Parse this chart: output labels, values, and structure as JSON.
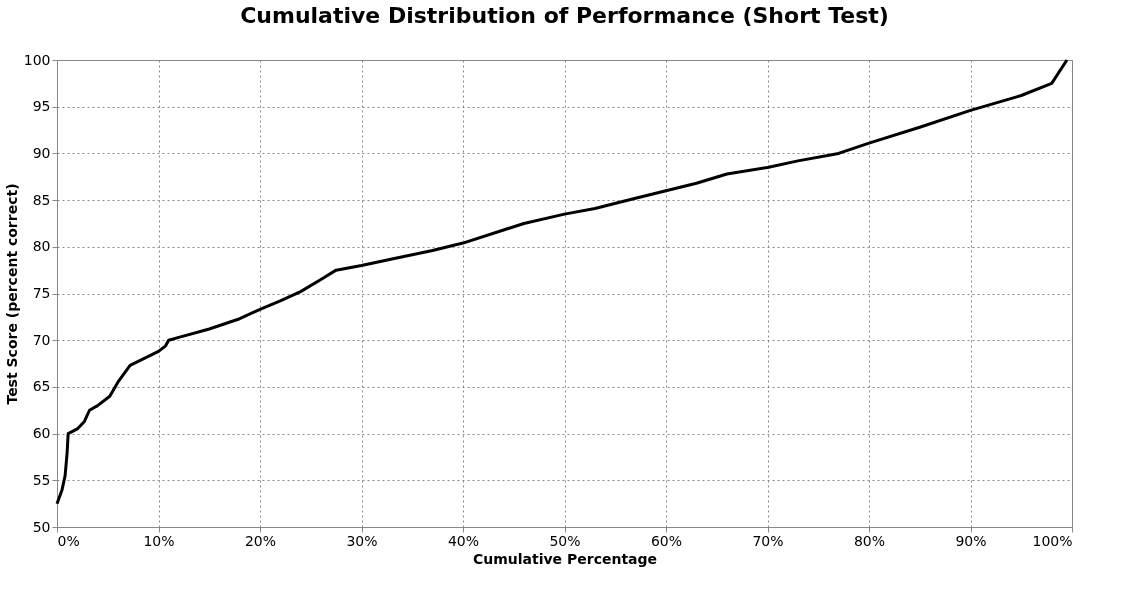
{
  "chart_data": {
    "type": "line",
    "title": "Cumulative Distribution of Performance (Short Test)",
    "xlabel": "Cumulative Percentage",
    "ylabel": "Test Score (percent correct)",
    "x": [
      0,
      0.5,
      0.8,
      1,
      1.1,
      2,
      2.7,
      3.2,
      4,
      5.2,
      6,
      7.2,
      8.5,
      10,
      10.7,
      11,
      12,
      15,
      18,
      20,
      22,
      24,
      26,
      27.5,
      30,
      33,
      37,
      40,
      44,
      46,
      50,
      53,
      57,
      60,
      63,
      66,
      70,
      73,
      77,
      80,
      85,
      90,
      95,
      98,
      99.5
    ],
    "series": [
      {
        "color": "#000000",
        "values": [
          52.5,
          54,
          55.5,
          58,
          60,
          60.5,
          61.3,
          62.5,
          63,
          64,
          65.5,
          67.3,
          68,
          68.8,
          69.4,
          70,
          70.3,
          71.2,
          72.3,
          73.3,
          74.2,
          75.2,
          76.5,
          77.5,
          78,
          78.7,
          79.6,
          80.4,
          81.8,
          82.5,
          83.5,
          84.1,
          85.2,
          86,
          86.8,
          87.8,
          88.5,
          89.2,
          90,
          91.1,
          92.8,
          94.6,
          96.2,
          97.5,
          100
        ]
      }
    ],
    "xlim": [
      0,
      100
    ],
    "ylim": [
      50,
      100
    ],
    "xticks": [
      {
        "value": 0,
        "label": "0%"
      },
      {
        "value": 10,
        "label": "10%"
      },
      {
        "value": 20,
        "label": "20%"
      },
      {
        "value": 30,
        "label": "30%"
      },
      {
        "value": 40,
        "label": "40%"
      },
      {
        "value": 50,
        "label": "50%"
      },
      {
        "value": 60,
        "label": "60%"
      },
      {
        "value": 70,
        "label": "70%"
      },
      {
        "value": 80,
        "label": "80%"
      },
      {
        "value": 90,
        "label": "90%"
      },
      {
        "value": 100,
        "label": "100%"
      }
    ],
    "yticks": [
      50,
      55,
      60,
      65,
      70,
      75,
      80,
      85,
      90,
      95,
      100
    ],
    "grid": true,
    "line_style": "solid",
    "marker": "none"
  }
}
